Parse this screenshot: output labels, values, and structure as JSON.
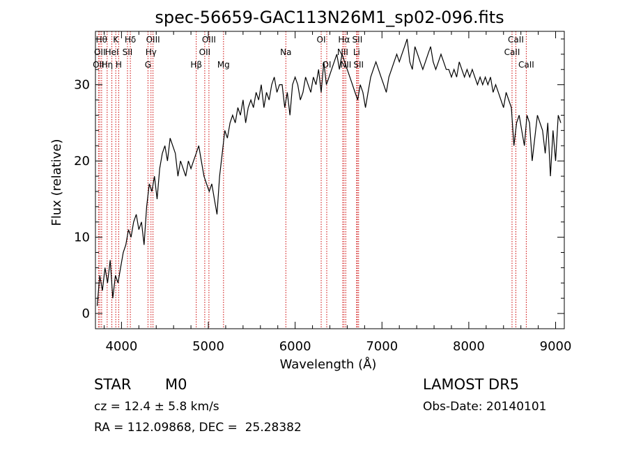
{
  "chart_data": {
    "type": "line",
    "title": "spec-56659-GAC113N26M1_sp02-096.fits",
    "xlabel": "Wavelength (Å)",
    "ylabel": "Flux (relative)",
    "xlim": [
      3700,
      9100
    ],
    "ylim": [
      -2,
      37
    ],
    "xticks": [
      4000,
      5000,
      6000,
      7000,
      8000,
      9000
    ],
    "yticks": [
      0,
      10,
      20,
      30
    ],
    "grid": false,
    "series_color": "#000000",
    "line_color": "#cc0000",
    "series": [
      {
        "x": [
          3720,
          3750,
          3780,
          3810,
          3840,
          3870,
          3900,
          3930,
          3960,
          3990,
          4020,
          4050,
          4080,
          4110,
          4140,
          4170,
          4200,
          4230,
          4260,
          4290,
          4320,
          4350,
          4380,
          4410,
          4440,
          4470,
          4500,
          4530,
          4560,
          4590,
          4620,
          4650,
          4680,
          4710,
          4740,
          4770,
          4800,
          4830,
          4860,
          4890,
          4920,
          4950,
          4980,
          5010,
          5040,
          5070,
          5100,
          5130,
          5160,
          5190,
          5220,
          5250,
          5280,
          5310,
          5340,
          5370,
          5400,
          5430,
          5460,
          5490,
          5520,
          5550,
          5580,
          5610,
          5640,
          5670,
          5700,
          5730,
          5760,
          5790,
          5820,
          5850,
          5880,
          5910,
          5940,
          5970,
          6000,
          6030,
          6060,
          6090,
          6120,
          6150,
          6180,
          6210,
          6240,
          6270,
          6300,
          6330,
          6360,
          6390,
          6420,
          6450,
          6480,
          6510,
          6540,
          6570,
          6600,
          6630,
          6660,
          6690,
          6720,
          6750,
          6780,
          6810,
          6840,
          6870,
          6900,
          6930,
          6960,
          6990,
          7020,
          7050,
          7080,
          7110,
          7140,
          7170,
          7200,
          7230,
          7260,
          7290,
          7320,
          7350,
          7380,
          7410,
          7440,
          7470,
          7500,
          7530,
          7560,
          7590,
          7620,
          7650,
          7680,
          7710,
          7740,
          7770,
          7800,
          7830,
          7860,
          7890,
          7920,
          7950,
          7980,
          8010,
          8040,
          8070,
          8100,
          8130,
          8160,
          8190,
          8220,
          8250,
          8280,
          8310,
          8340,
          8370,
          8400,
          8430,
          8460,
          8490,
          8520,
          8550,
          8580,
          8610,
          8640,
          8670,
          8700,
          8730,
          8760,
          8790,
          8820,
          8850,
          8880,
          8910,
          8940,
          8970,
          9000,
          9030,
          9060
        ],
        "y": [
          1,
          5,
          3,
          6,
          4,
          7,
          2,
          5,
          4,
          6,
          8,
          9,
          11,
          10,
          12,
          13,
          11,
          12,
          9,
          14,
          17,
          16,
          18,
          15,
          19,
          21,
          22,
          20,
          23,
          22,
          21,
          18,
          20,
          19,
          18,
          20,
          19,
          20,
          21,
          22,
          20,
          18,
          17,
          16,
          17,
          15,
          13,
          18,
          21,
          24,
          23,
          25,
          26,
          25,
          27,
          26,
          28,
          25,
          27,
          28,
          27,
          29,
          28,
          30,
          27,
          29,
          28,
          30,
          31,
          29,
          30,
          30,
          27,
          29,
          26,
          30,
          31,
          30,
          28,
          29,
          31,
          30,
          29,
          31,
          30,
          32,
          29,
          33,
          30,
          31,
          32,
          33,
          34,
          32,
          34,
          33,
          32,
          31,
          30,
          29,
          28,
          30,
          29,
          27,
          29,
          31,
          32,
          33,
          32,
          31,
          30,
          29,
          31,
          32,
          33,
          34,
          33,
          34,
          35,
          36,
          33,
          32,
          35,
          34,
          33,
          32,
          33,
          34,
          35,
          33,
          32,
          33,
          34,
          33,
          32,
          32,
          31,
          32,
          31,
          33,
          32,
          31,
          32,
          31,
          32,
          31,
          30,
          31,
          30,
          31,
          30,
          31,
          29,
          30,
          29,
          28,
          27,
          29,
          28,
          27,
          22,
          25,
          26,
          24,
          22,
          26,
          25,
          20,
          23,
          26,
          25,
          24,
          21,
          25,
          18,
          24,
          20,
          26,
          25
        ]
      }
    ],
    "lines": [
      {
        "x": 3735,
        "label": "OII",
        "row": 2
      },
      {
        "x": 3750,
        "label": "OII",
        "row": 1
      },
      {
        "x": 3771,
        "label": "Hθ",
        "row": 0
      },
      {
        "x": 3835,
        "label": "Hη",
        "row": 2
      },
      {
        "x": 3889,
        "label": "HeI",
        "row": 1
      },
      {
        "x": 3934,
        "label": "K",
        "row": 0
      },
      {
        "x": 3968,
        "label": "H",
        "row": 2
      },
      {
        "x": 4069,
        "label": "SII",
        "row": 1
      },
      {
        "x": 4102,
        "label": "Hδ",
        "row": 0
      },
      {
        "x": 4305,
        "label": "G",
        "row": 2
      },
      {
        "x": 4340,
        "label": "Hγ",
        "row": 1
      },
      {
        "x": 4363,
        "label": "OIII",
        "row": 0
      },
      {
        "x": 4861,
        "label": "Hβ",
        "row": 2
      },
      {
        "x": 4959,
        "label": "OII",
        "row": 1
      },
      {
        "x": 5007,
        "label": "OIII",
        "row": 0
      },
      {
        "x": 5175,
        "label": "Mg",
        "row": 2
      },
      {
        "x": 5893,
        "label": "Na",
        "row": 1
      },
      {
        "x": 6300,
        "label": "OI",
        "row": 0
      },
      {
        "x": 6364,
        "label": "OI",
        "row": 2
      },
      {
        "x": 6548,
        "label": "NII",
        "row": 1
      },
      {
        "x": 6563,
        "label": "Hα",
        "row": 0
      },
      {
        "x": 6583,
        "label": "NII",
        "row": 2
      },
      {
        "x": 6708,
        "label": "Li",
        "row": 1
      },
      {
        "x": 6716,
        "label": "SII",
        "row": 0
      },
      {
        "x": 6731,
        "label": "SII",
        "row": 2
      },
      {
        "x": 8498,
        "label": "CaII",
        "row": 1
      },
      {
        "x": 8542,
        "label": "CaII",
        "row": 0
      },
      {
        "x": 8662,
        "label": "CaII",
        "row": 2
      }
    ]
  },
  "info": {
    "class_label": "STAR",
    "subclass": "M0",
    "survey": "LAMOST DR5",
    "cz": "cz = 12.4 ± 5.8 km/s",
    "obs_date": "Obs-Date: 20140101",
    "coords": "RA = 112.09868, DEC =  25.28382"
  }
}
